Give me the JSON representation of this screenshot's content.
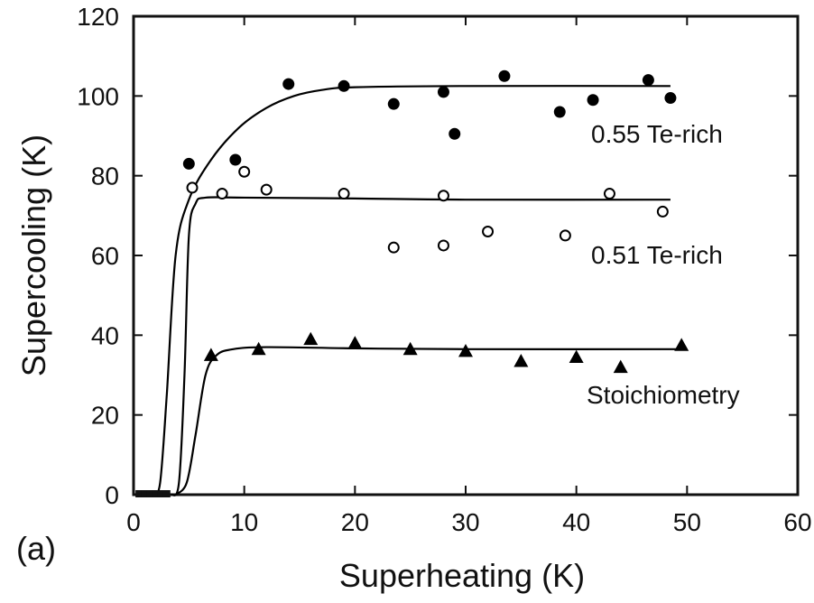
{
  "chart_data": {
    "type": "scatter",
    "panel_label": "(a)",
    "xlabel": "Superheating (K)",
    "ylabel": "Supercooling (K)",
    "xlim": [
      0,
      60
    ],
    "ylim": [
      0,
      120
    ],
    "xticks": [
      0,
      10,
      20,
      30,
      40,
      50,
      60
    ],
    "yticks": [
      0,
      20,
      40,
      60,
      80,
      100,
      120
    ],
    "series": [
      {
        "name": "0.55 Te-rich",
        "marker": "filled-circle",
        "color": "#000000",
        "points": [
          [
            5,
            83
          ],
          [
            9.2,
            84
          ],
          [
            14,
            103
          ],
          [
            19,
            102.5
          ],
          [
            23.5,
            98
          ],
          [
            28,
            101
          ],
          [
            29,
            90.5
          ],
          [
            33.5,
            105
          ],
          [
            38.5,
            96
          ],
          [
            41.5,
            99
          ],
          [
            46.5,
            104
          ],
          [
            48.5,
            99.5
          ]
        ],
        "fit": [
          [
            1.8,
            0
          ],
          [
            2.4,
            3
          ],
          [
            3,
            25
          ],
          [
            3.8,
            60
          ],
          [
            5,
            74
          ],
          [
            7,
            84
          ],
          [
            9.5,
            92
          ],
          [
            12,
            97
          ],
          [
            14.5,
            100
          ],
          [
            17,
            101.5
          ],
          [
            20,
            102.2
          ],
          [
            30,
            102.5
          ],
          [
            48.5,
            102.5
          ]
        ]
      },
      {
        "name": "0.51 Te-rich",
        "marker": "open-circle",
        "color": "#000000",
        "points": [
          [
            5.3,
            77
          ],
          [
            8,
            75.5
          ],
          [
            10,
            81
          ],
          [
            12,
            76.5
          ],
          [
            19,
            75.5
          ],
          [
            23.5,
            62
          ],
          [
            28,
            62.5
          ],
          [
            28,
            75
          ],
          [
            32,
            66
          ],
          [
            39,
            65
          ],
          [
            43,
            75.5
          ],
          [
            47.8,
            71
          ]
        ],
        "fit": [
          [
            3.4,
            0
          ],
          [
            4.1,
            3
          ],
          [
            4.6,
            30
          ],
          [
            5,
            65
          ],
          [
            5.6,
            73
          ],
          [
            6.5,
            74.5
          ],
          [
            10,
            74.5
          ],
          [
            20,
            74.3
          ],
          [
            30,
            74
          ],
          [
            48.5,
            74
          ]
        ]
      },
      {
        "name": "Stoichiometry",
        "marker": "filled-triangle",
        "color": "#000000",
        "points": [
          [
            7,
            35
          ],
          [
            11.3,
            36.5
          ],
          [
            16,
            39
          ],
          [
            20,
            38
          ],
          [
            25,
            36.5
          ],
          [
            30,
            36
          ],
          [
            35,
            33.5
          ],
          [
            40,
            34.5
          ],
          [
            44,
            32
          ],
          [
            49.5,
            37.5
          ]
        ],
        "fit": [
          [
            3.8,
            0
          ],
          [
            4.8,
            3
          ],
          [
            5.6,
            15
          ],
          [
            6.5,
            30
          ],
          [
            7.5,
            35
          ],
          [
            9,
            36.5
          ],
          [
            12,
            37
          ],
          [
            20,
            36.7
          ],
          [
            30,
            36.5
          ],
          [
            49.5,
            36.5
          ]
        ]
      }
    ],
    "near_zero_points": [
      [
        0.5,
        0
      ],
      [
        1,
        0
      ],
      [
        1.5,
        0
      ],
      [
        2,
        0
      ],
      [
        2.5,
        0
      ],
      [
        3,
        0
      ]
    ]
  }
}
